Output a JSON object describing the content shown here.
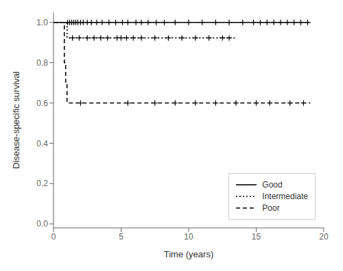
{
  "chart_data": {
    "type": "line",
    "xlabel": "Time (years)",
    "ylabel": "Disease-specific survival",
    "xlim": [
      0,
      20
    ],
    "ylim": [
      -0.02,
      1.05
    ],
    "xticks": [
      0,
      5,
      10,
      15,
      20
    ],
    "yticks": [
      {
        "value": 0.0,
        "label": "0.0"
      },
      0.2,
      0.4,
      0.6,
      0.8,
      {
        "value": 1.0,
        "label": "1.0"
      }
    ],
    "grid": false,
    "legend": "lower right",
    "series": [
      {
        "name": "Good",
        "color": "black",
        "line_style": "solid",
        "marker": "+",
        "x": [
          0,
          19.0
        ],
        "values": [
          1.0,
          1.0
        ],
        "censors_x": [
          1.05,
          1.2,
          1.35,
          1.5,
          1.65,
          1.8,
          2.0,
          2.2,
          2.5,
          2.8,
          3.2,
          3.6,
          4.1,
          4.6,
          5.1,
          5.5,
          6.1,
          6.5,
          7.0,
          7.6,
          8.2,
          9.0,
          10.0,
          11.0,
          12.0,
          13.0,
          14.0,
          14.8,
          15.3,
          15.8,
          16.3,
          16.8,
          17.3,
          17.8,
          18.3,
          18.8
        ],
        "censors_y": [
          1.0,
          1.0,
          1.0,
          1.0,
          1.0,
          1.0,
          1.0,
          1.0,
          1.0,
          1.0,
          1.0,
          1.0,
          1.0,
          1.0,
          1.0,
          1.0,
          1.0,
          1.0,
          1.0,
          1.0,
          1.0,
          1.0,
          1.0,
          1.0,
          1.0,
          1.0,
          1.0,
          1.0,
          1.0,
          1.0,
          1.0,
          1.0,
          1.0,
          1.0,
          1.0,
          1.0
        ]
      },
      {
        "name": "Intermediate",
        "color": "black",
        "line_style": "dotted",
        "marker": "+",
        "x": [
          0,
          1.0,
          1.0,
          13.5
        ],
        "values": [
          1.0,
          1.0,
          0.923,
          0.923
        ],
        "censors_x": [
          1.4,
          1.9,
          2.5,
          3.0,
          3.5,
          4.0,
          4.7,
          5.0,
          5.4,
          5.9,
          6.5,
          7.5,
          8.5,
          9.5,
          10.5,
          11.5,
          12.5,
          13.0
        ],
        "censors_y": [
          0.923,
          0.923,
          0.923,
          0.923,
          0.923,
          0.923,
          0.923,
          0.923,
          0.923,
          0.923,
          0.923,
          0.923,
          0.923,
          0.923,
          0.923,
          0.923,
          0.923,
          0.923
        ]
      },
      {
        "name": "Poor",
        "color": "black",
        "line_style": "dashed",
        "marker": "+",
        "x": [
          0,
          0.8,
          0.8,
          0.9,
          0.9,
          1.0,
          1.0,
          19.0
        ],
        "values": [
          1.0,
          1.0,
          0.8,
          0.8,
          0.7,
          0.7,
          0.6,
          0.6
        ],
        "censors_x": [
          2.0,
          5.5,
          7.5,
          9.0,
          10.5,
          12.0,
          13.5,
          15.0,
          16.0,
          17.5,
          18.5
        ],
        "censors_y": [
          0.6,
          0.6,
          0.6,
          0.6,
          0.6,
          0.6,
          0.6,
          0.6,
          0.6,
          0.6,
          0.6
        ]
      }
    ]
  }
}
